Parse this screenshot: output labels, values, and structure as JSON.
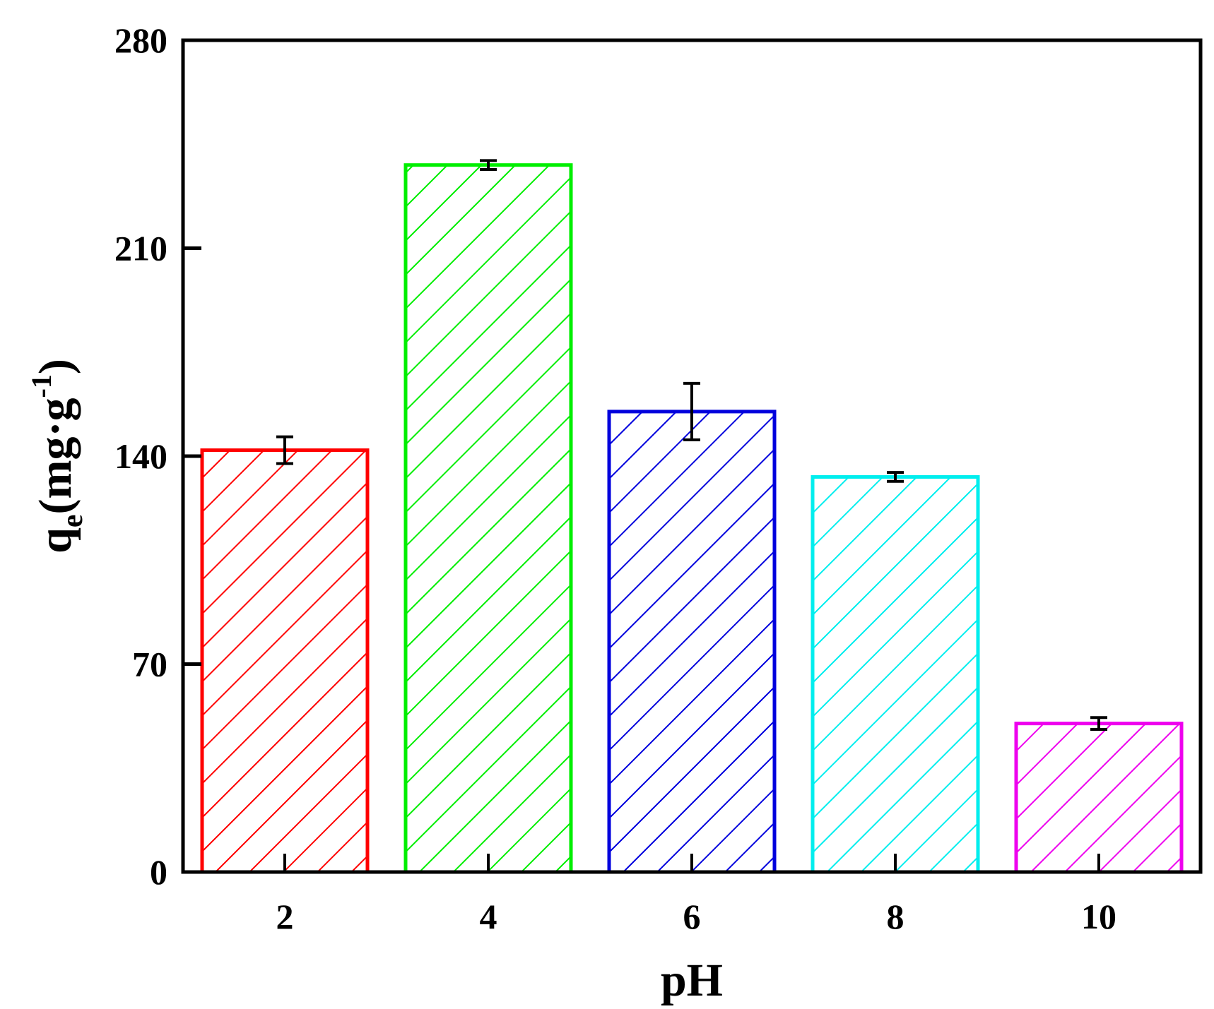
{
  "chart_data": {
    "type": "bar",
    "categories": [
      "2",
      "4",
      "6",
      "8",
      "10"
    ],
    "values": [
      142,
      238,
      155,
      133,
      50
    ],
    "errors": [
      4.5,
      1.5,
      9.5,
      1.5,
      2
    ],
    "colors": [
      "#ff0000",
      "#00ee00",
      "#0000dd",
      "#00eeee",
      "#ee00ee"
    ],
    "pattern": "diagonal-hatch",
    "xlabel": "pH",
    "ylabel": {
      "main": "q",
      "sub": "e",
      "unit_open": "(mg·g",
      "unit_sup": "-1",
      "unit_close": ")"
    },
    "yticks": [
      "0",
      "70",
      "140",
      "210",
      "280"
    ],
    "ylim": [
      0,
      280
    ],
    "grid": false,
    "legend": "none"
  }
}
